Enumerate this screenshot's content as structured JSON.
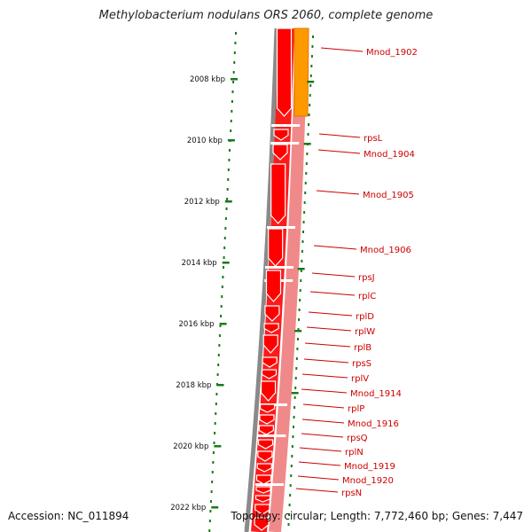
{
  "title": "Methylobacterium nodulans ORS 2060, complete genome",
  "accession": "Accession: NC_011894",
  "topology": "Topology: circular; Length: 7,772,460 bp; Genes: 7,447",
  "colors": {
    "gene_dark": "#ff0000",
    "gene_light": "#f08080",
    "orange": "#ff9900",
    "scale": "#1a7a1a",
    "label": "#cc0000",
    "backbone": "#808080"
  },
  "scale_labels": [
    "2008 kbp",
    "2010 kbp",
    "2012 kbp",
    "2014 kbp",
    "2016 kbp",
    "2018 kbp",
    "2020 kbp",
    "2022 kbp"
  ],
  "genes": [
    "Mnod_1902",
    "rpsL",
    "Mnod_1904",
    "Mnod_1905",
    "Mnod_1906",
    "rpsJ",
    "rplC",
    "rplD",
    "rplW",
    "rplB",
    "rpsS",
    "rplV",
    "Mnod_1914",
    "rplP",
    "Mnod_1916",
    "rpsQ",
    "rplN",
    "Mnod_1919",
    "Mnod_1920",
    "rpsN"
  ]
}
